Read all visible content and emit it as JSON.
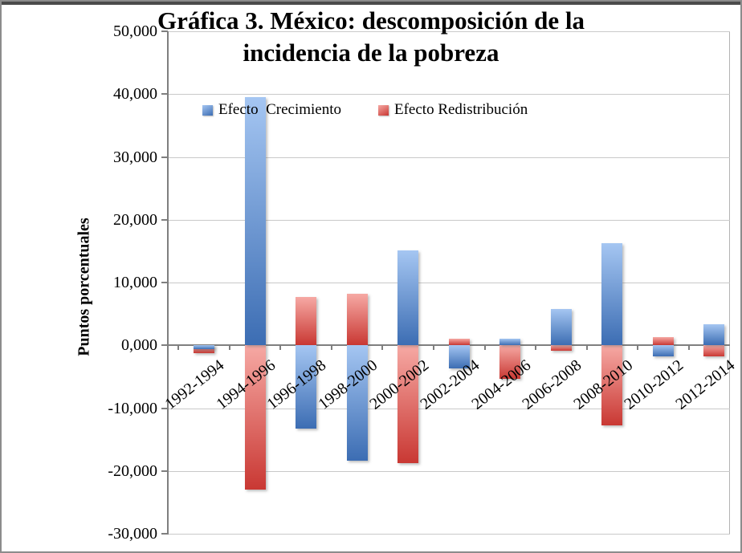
{
  "window": {
    "background": "#ffffff",
    "topbar_color": "#4b4b4b",
    "border_color": "#8c8c8c"
  },
  "chart_data": {
    "type": "bar",
    "title": "Gráfica 3. México: descomposición de la incidencia de la pobreza",
    "title_display": "Gráfica 3. México: descomposición de la\nincidencia de la pobreza",
    "ylabel": "Puntos porcentuales",
    "xlabel": "",
    "ylim": [
      -30,
      50
    ],
    "grid": true,
    "legend_position": "top-inside",
    "number_format": "comma decimal, three places (10,000 = 10.000)",
    "categories": [
      "1992-1994",
      "1994-1996",
      "1996-1998",
      "1998-2000",
      "2000-2002",
      "2002-2004",
      "2004-2006",
      "2006-2008",
      "2008-2010",
      "2010-2012",
      "2012-2014"
    ],
    "y_ticks": [
      {
        "value": 50,
        "label": "50,000"
      },
      {
        "value": 40,
        "label": "40,000"
      },
      {
        "value": 30,
        "label": "30,000"
      },
      {
        "value": 20,
        "label": "20,000"
      },
      {
        "value": 10,
        "label": "10,000"
      },
      {
        "value": 0,
        "label": "0,000"
      },
      {
        "value": -10,
        "label": "-10,000"
      },
      {
        "value": -20,
        "label": "-20,000"
      },
      {
        "value": -30,
        "label": "-30,000"
      }
    ],
    "series": [
      {
        "name": "Efecto  Crecimiento",
        "color_light": "#A5C6F2",
        "color_dark": "#3C6DB3",
        "values": [
          -0.6,
          39.5,
          -13.3,
          -18.4,
          15.1,
          -3.7,
          1.0,
          5.8,
          16.2,
          -1.8,
          3.4
        ]
      },
      {
        "name": "Efecto Redistribución",
        "color_light": "#F6A9A4",
        "color_dark": "#C93833",
        "values": [
          -1.3,
          -23.0,
          7.7,
          8.2,
          -18.8,
          1.0,
          -5.3,
          -0.9,
          -12.7,
          1.3,
          -1.8
        ]
      }
    ]
  }
}
